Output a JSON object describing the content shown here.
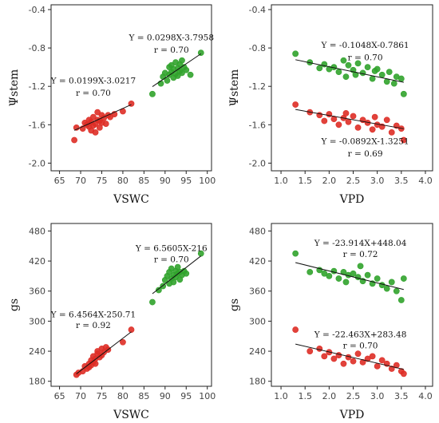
{
  "colors": {
    "red": "#de2d26",
    "green": "#31a32c",
    "axis": "#222222",
    "grid": "#dddddd",
    "fit_line": "#111111"
  },
  "chart_data": [
    {
      "type": "scatter",
      "id": "a",
      "xlabel": "VSWC",
      "ylabel": "Ψstem",
      "xlim": [
        63,
        101
      ],
      "ylim": [
        -2.08,
        -0.35
      ],
      "xticks": [
        65,
        70,
        75,
        80,
        85,
        90,
        95,
        100
      ],
      "yticks": [
        -2.0,
        -1.6,
        -1.2,
        -0.8,
        -0.4
      ],
      "ytick_labels": [
        "-2.0",
        "-1.6",
        "-1.2",
        "-0.8",
        "-0.4"
      ],
      "grid": false,
      "series": [
        {
          "color": "red",
          "points": [
            [
              68.5,
              -1.76
            ],
            [
              69.0,
              -1.63
            ],
            [
              70.5,
              -1.64
            ],
            [
              71.0,
              -1.58
            ],
            [
              71.5,
              -1.6
            ],
            [
              72.0,
              -1.62
            ],
            [
              72.0,
              -1.55
            ],
            [
              72.5,
              -1.66
            ],
            [
              72.5,
              -1.57
            ],
            [
              73.0,
              -1.61
            ],
            [
              73.0,
              -1.52
            ],
            [
              73.5,
              -1.68
            ],
            [
              73.5,
              -1.59
            ],
            [
              74.0,
              -1.55
            ],
            [
              74.0,
              -1.47
            ],
            [
              74.5,
              -1.63
            ],
            [
              74.5,
              -1.56
            ],
            [
              75.0,
              -1.5
            ],
            [
              75.0,
              -1.58
            ],
            [
              75.5,
              -1.53
            ],
            [
              76.0,
              -1.59
            ],
            [
              76.5,
              -1.5
            ],
            [
              77.0,
              -1.52
            ],
            [
              78.0,
              -1.49
            ],
            [
              80.0,
              -1.46
            ],
            [
              82.0,
              -1.38
            ]
          ],
          "fit": {
            "slope": 0.0199,
            "intercept": -3.0217,
            "x_range": [
              68.5,
              82
            ]
          }
        },
        {
          "color": "green",
          "points": [
            [
              87.0,
              -1.28
            ],
            [
              89.0,
              -1.17
            ],
            [
              89.5,
              -1.1
            ],
            [
              90.0,
              -1.06
            ],
            [
              90.5,
              -1.14
            ],
            [
              91.0,
              -1.08
            ],
            [
              91.0,
              -1.0
            ],
            [
              91.5,
              -1.05
            ],
            [
              91.5,
              -0.98
            ],
            [
              92.0,
              -1.11
            ],
            [
              92.0,
              -1.02
            ],
            [
              92.5,
              -1.07
            ],
            [
              92.5,
              -0.95
            ],
            [
              93.0,
              -1.09
            ],
            [
              93.0,
              -1.01
            ],
            [
              93.5,
              -1.04
            ],
            [
              93.5,
              -0.97
            ],
            [
              94.0,
              -1.06
            ],
            [
              94.0,
              -0.93
            ],
            [
              94.5,
              -1.0
            ],
            [
              95.0,
              -1.03
            ],
            [
              96.0,
              -1.08
            ],
            [
              98.5,
              -0.85
            ]
          ],
          "fit": {
            "slope": 0.0298,
            "intercept": -3.7958,
            "x_range": [
              87,
              98.5
            ]
          }
        }
      ],
      "annotations": [
        {
          "text": "Y = 0.0298X-3.7958",
          "x": 91.5,
          "y": -0.72
        },
        {
          "text": "r = 0.70",
          "x": 91.5,
          "y": -0.85
        },
        {
          "text": "Y = 0.0199X-3.0217",
          "x": 73.0,
          "y": -1.17
        },
        {
          "text": "r = 0.70",
          "x": 73.0,
          "y": -1.3
        }
      ]
    },
    {
      "type": "scatter",
      "id": "b",
      "xlabel": "VPD",
      "ylabel": "Ψstem",
      "xlim": [
        0.8,
        4.15
      ],
      "ylim": [
        -2.08,
        -0.35
      ],
      "xticks": [
        1.0,
        1.5,
        2.0,
        2.5,
        3.0,
        3.5,
        4.0
      ],
      "xtick_labels": [
        "1.0",
        "1.5",
        "2.0",
        "2.5",
        "3.0",
        "3.5",
        "4.0"
      ],
      "yticks": [
        -2.0,
        -1.6,
        -1.2,
        -0.8,
        -0.4
      ],
      "ytick_labels": [
        "-2.0",
        "-1.6",
        "-1.2",
        "-0.8",
        "-0.4"
      ],
      "grid": false,
      "series": [
        {
          "color": "green",
          "points": [
            [
              1.3,
              -0.86
            ],
            [
              1.6,
              -0.95
            ],
            [
              1.8,
              -1.01
            ],
            [
              1.9,
              -0.97
            ],
            [
              2.0,
              -1.02
            ],
            [
              2.1,
              -1.0
            ],
            [
              2.2,
              -1.05
            ],
            [
              2.3,
              -0.93
            ],
            [
              2.35,
              -1.1
            ],
            [
              2.4,
              -0.98
            ],
            [
              2.5,
              -1.03
            ],
            [
              2.55,
              -1.08
            ],
            [
              2.6,
              -0.96
            ],
            [
              2.7,
              -1.06
            ],
            [
              2.8,
              -1.0
            ],
            [
              2.9,
              -1.12
            ],
            [
              2.95,
              -1.04
            ],
            [
              3.0,
              -1.02
            ],
            [
              3.1,
              -1.08
            ],
            [
              3.2,
              -1.15
            ],
            [
              3.25,
              -1.05
            ],
            [
              3.35,
              -1.17
            ],
            [
              3.4,
              -1.1
            ],
            [
              3.5,
              -1.12
            ],
            [
              3.55,
              -1.28
            ]
          ],
          "fit": {
            "slope": -0.1048,
            "intercept": -0.7861,
            "x_range": [
              1.3,
              3.55
            ]
          }
        },
        {
          "color": "red",
          "points": [
            [
              1.3,
              -1.39
            ],
            [
              1.6,
              -1.47
            ],
            [
              1.8,
              -1.5
            ],
            [
              1.9,
              -1.56
            ],
            [
              2.0,
              -1.49
            ],
            [
              2.1,
              -1.54
            ],
            [
              2.2,
              -1.6
            ],
            [
              2.3,
              -1.53
            ],
            [
              2.35,
              -1.48
            ],
            [
              2.4,
              -1.57
            ],
            [
              2.5,
              -1.51
            ],
            [
              2.6,
              -1.63
            ],
            [
              2.7,
              -1.55
            ],
            [
              2.8,
              -1.58
            ],
            [
              2.9,
              -1.65
            ],
            [
              2.95,
              -1.52
            ],
            [
              3.0,
              -1.6
            ],
            [
              3.1,
              -1.62
            ],
            [
              3.2,
              -1.55
            ],
            [
              3.3,
              -1.68
            ],
            [
              3.4,
              -1.61
            ],
            [
              3.5,
              -1.64
            ],
            [
              3.55,
              -1.76
            ]
          ],
          "fit": {
            "slope": -0.0892,
            "intercept": -1.3251,
            "x_range": [
              1.3,
              3.55
            ]
          }
        }
      ],
      "annotations": [
        {
          "text": "Y = -0.1048X-0.7861",
          "x": 2.75,
          "y": -0.8
        },
        {
          "text": "r = 0.70",
          "x": 2.75,
          "y": -0.93
        },
        {
          "text": "Y = -0.0892X-1.3251",
          "x": 2.75,
          "y": -1.8
        },
        {
          "text": "r = 0.69",
          "x": 2.75,
          "y": -1.93
        }
      ]
    },
    {
      "type": "scatter",
      "id": "c",
      "xlabel": "VSWC",
      "ylabel": "gs",
      "xlim": [
        63,
        101
      ],
      "ylim": [
        170,
        495
      ],
      "xticks": [
        65,
        70,
        75,
        80,
        85,
        90,
        95,
        100
      ],
      "yticks": [
        180,
        240,
        300,
        360,
        420,
        480
      ],
      "grid": false,
      "series": [
        {
          "color": "red",
          "points": [
            [
              69.0,
              193
            ],
            [
              69.5,
              197
            ],
            [
              70.5,
              200
            ],
            [
              71.0,
              210
            ],
            [
              71.5,
              205
            ],
            [
              72.0,
              215
            ],
            [
              72.0,
              208
            ],
            [
              72.5,
              222
            ],
            [
              72.5,
              212
            ],
            [
              73.0,
              218
            ],
            [
              73.0,
              230
            ],
            [
              73.5,
              225
            ],
            [
              73.5,
              215
            ],
            [
              74.0,
              235
            ],
            [
              74.0,
              240
            ],
            [
              74.5,
              228
            ],
            [
              75.0,
              245
            ],
            [
              75.0,
              232
            ],
            [
              75.5,
              238
            ],
            [
              76.0,
              248
            ],
            [
              76.5,
              243
            ],
            [
              80.0,
              258
            ],
            [
              82.0,
              283
            ]
          ],
          "fit": {
            "slope": 6.4564,
            "intercept": -250.71,
            "x_range": [
              69,
              82
            ]
          }
        },
        {
          "color": "green",
          "points": [
            [
              87.0,
              338
            ],
            [
              88.5,
              362
            ],
            [
              89.5,
              370
            ],
            [
              90.0,
              382
            ],
            [
              90.5,
              390
            ],
            [
              91.0,
              375
            ],
            [
              91.0,
              398
            ],
            [
              91.5,
              385
            ],
            [
              91.5,
              405
            ],
            [
              92.0,
              392
            ],
            [
              92.0,
              378
            ],
            [
              92.5,
              400
            ],
            [
              92.5,
              388
            ],
            [
              93.0,
              395
            ],
            [
              93.0,
              408
            ],
            [
              93.5,
              383
            ],
            [
              93.5,
              398
            ],
            [
              94.0,
              392
            ],
            [
              94.5,
              400
            ],
            [
              95.0,
              395
            ],
            [
              98.5,
              435
            ]
          ],
          "fit": {
            "slope": 6.5605,
            "intercept": -216,
            "x_range": [
              87,
              98.5
            ]
          }
        }
      ],
      "annotations": [
        {
          "text": "Y = 6.5605X-216",
          "x": 91.5,
          "y": 440
        },
        {
          "text": "r = 0.70",
          "x": 91.5,
          "y": 418
        },
        {
          "text": "Y = 6.4564X-250.71",
          "x": 73.0,
          "y": 308
        },
        {
          "text": "r = 0.92",
          "x": 73.0,
          "y": 286
        }
      ]
    },
    {
      "type": "scatter",
      "id": "d",
      "xlabel": "VPD",
      "ylabel": "gs",
      "xlim": [
        0.8,
        4.15
      ],
      "ylim": [
        170,
        495
      ],
      "xticks": [
        1.0,
        1.5,
        2.0,
        2.5,
        3.0,
        3.5,
        4.0
      ],
      "xtick_labels": [
        "1.0",
        "1.5",
        "2.0",
        "2.5",
        "3.0",
        "3.5",
        "4.0"
      ],
      "yticks": [
        180,
        240,
        300,
        360,
        420,
        480
      ],
      "grid": false,
      "series": [
        {
          "color": "green",
          "points": [
            [
              1.3,
              435
            ],
            [
              1.6,
              398
            ],
            [
              1.8,
              402
            ],
            [
              1.9,
              395
            ],
            [
              2.0,
              390
            ],
            [
              2.1,
              400
            ],
            [
              2.2,
              385
            ],
            [
              2.3,
              398
            ],
            [
              2.35,
              378
            ],
            [
              2.4,
              392
            ],
            [
              2.5,
              395
            ],
            [
              2.6,
              388
            ],
            [
              2.65,
              410
            ],
            [
              2.7,
              380
            ],
            [
              2.8,
              392
            ],
            [
              2.9,
              375
            ],
            [
              3.0,
              385
            ],
            [
              3.1,
              372
            ],
            [
              3.2,
              365
            ],
            [
              3.3,
              378
            ],
            [
              3.4,
              360
            ],
            [
              3.5,
              342
            ],
            [
              3.55,
              385
            ]
          ],
          "fit": {
            "slope": -23.914,
            "intercept": 448.04,
            "x_range": [
              1.3,
              3.55
            ]
          }
        },
        {
          "color": "red",
          "points": [
            [
              1.3,
              283
            ],
            [
              1.6,
              240
            ],
            [
              1.8,
              245
            ],
            [
              1.9,
              230
            ],
            [
              2.0,
              238
            ],
            [
              2.1,
              225
            ],
            [
              2.2,
              232
            ],
            [
              2.3,
              215
            ],
            [
              2.4,
              228
            ],
            [
              2.5,
              220
            ],
            [
              2.6,
              235
            ],
            [
              2.7,
              218
            ],
            [
              2.8,
              225
            ],
            [
              2.9,
              230
            ],
            [
              3.0,
              210
            ],
            [
              3.1,
              222
            ],
            [
              3.2,
              215
            ],
            [
              3.3,
              205
            ],
            [
              3.4,
              212
            ],
            [
              3.5,
              200
            ],
            [
              3.55,
              195
            ]
          ],
          "fit": {
            "slope": -22.463,
            "intercept": 283.48,
            "x_range": [
              1.3,
              3.55
            ]
          }
        }
      ],
      "annotations": [
        {
          "text": "Y = -23.914X+448.04",
          "x": 2.65,
          "y": 450
        },
        {
          "text": "r = 0.72",
          "x": 2.65,
          "y": 428
        },
        {
          "text": "Y = -22.463X+283.48",
          "x": 2.65,
          "y": 268
        },
        {
          "text": "r = 0.70",
          "x": 2.65,
          "y": 246
        }
      ]
    }
  ]
}
